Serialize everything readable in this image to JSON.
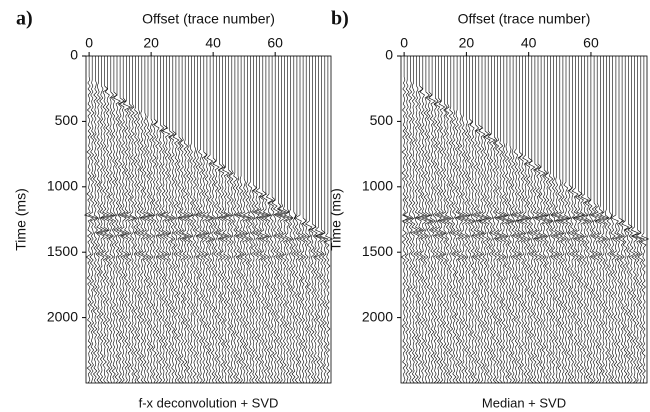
{
  "chart_data": [
    {
      "type": "wiggle",
      "panel_label": "a)",
      "xlabel": "Offset (trace number)",
      "ylabel": "Time (ms)",
      "caption": "f-x deconvolution + SVD",
      "xlim": [
        -1,
        78
      ],
      "ylim": [
        0,
        2500
      ],
      "xticks": [
        0,
        20,
        40,
        60
      ],
      "yticks": [
        0,
        500,
        1000,
        1500,
        2000
      ]
    },
    {
      "type": "wiggle",
      "panel_label": "b)",
      "xlabel": "Offset (trace number)",
      "ylabel": "Time (ms)",
      "caption": "Median + SVD",
      "xlim": [
        -1,
        78
      ],
      "ylim": [
        0,
        2500
      ],
      "xticks": [
        0,
        20,
        40,
        60
      ],
      "yticks": [
        0,
        500,
        1000,
        1500,
        2000
      ]
    }
  ]
}
